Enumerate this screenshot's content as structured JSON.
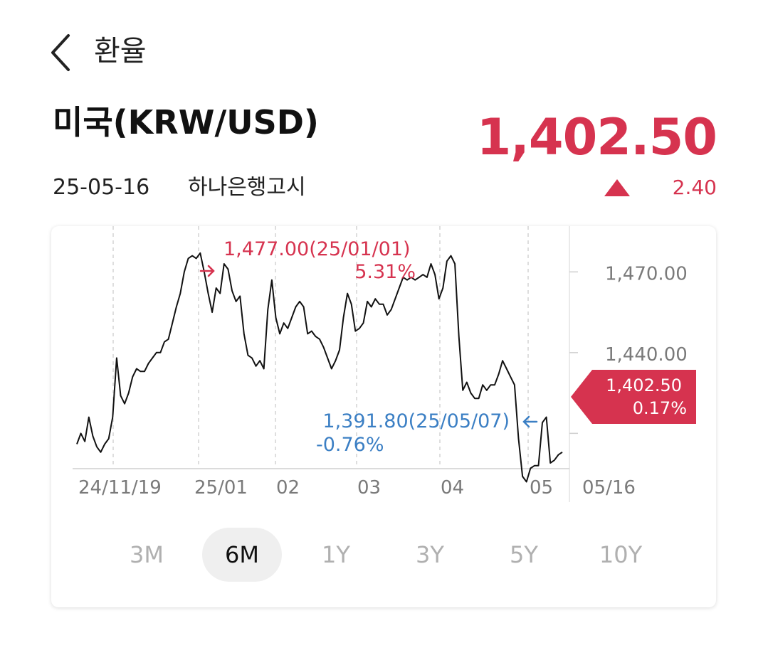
{
  "header": {
    "title": "환율",
    "back_icon": "chevron-left-icon"
  },
  "currency": {
    "name": "미국(KRW/USD)",
    "price": "1,402.50",
    "date": "25-05-16",
    "source": "하나은행고시",
    "change": "2.40",
    "change_direction": "up",
    "up_color": "#d6334f",
    "down_color": "#3b7fc4"
  },
  "periods": {
    "items": [
      "3M",
      "6M",
      "1Y",
      "3Y",
      "5Y",
      "10Y"
    ],
    "active": "6M"
  },
  "chart_data": {
    "type": "line",
    "series": [
      {
        "values": [
          1406,
          1410,
          1407,
          1416,
          1409,
          1405,
          1403,
          1406,
          1408,
          1416,
          1438,
          1424,
          1421,
          1425,
          1431,
          1434,
          1433,
          1433,
          1436,
          1438,
          1440,
          1440,
          1444,
          1445,
          1451,
          1457,
          1462,
          1470,
          1475,
          1476,
          1475,
          1477,
          1470,
          1462,
          1455,
          1464,
          1462,
          1473,
          1471,
          1463,
          1459,
          1461,
          1447,
          1439,
          1438,
          1435,
          1437,
          1434,
          1456,
          1467,
          1453,
          1447,
          1451,
          1449,
          1453,
          1457,
          1459,
          1457,
          1447,
          1448,
          1446,
          1445,
          1442,
          1438,
          1434,
          1437,
          1441,
          1453,
          1462,
          1458,
          1448,
          1449,
          1451,
          1459,
          1457,
          1460,
          1458,
          1458,
          1454,
          1456,
          1460,
          1464,
          1468,
          1467,
          1468,
          1467,
          1468,
          1469,
          1468,
          1473,
          1469,
          1460,
          1464,
          1474,
          1476,
          1473,
          1446,
          1426,
          1429,
          1425,
          1423,
          1423,
          1428,
          1426,
          1428,
          1428,
          1432,
          1437,
          1434,
          1431,
          1428,
          1408,
          1394,
          1392,
          1397,
          1398,
          1398,
          1414,
          1416,
          1399,
          1400,
          1402,
          1403
        ]
      }
    ],
    "x_labels": [
      "24/11/19",
      "25/01",
      "02",
      "03",
      "04",
      "05",
      "05/16"
    ],
    "y_ticks": [
      "1,470.00",
      "1,440.00"
    ],
    "y_tick_values": [
      1470,
      1440
    ],
    "y_range": [
      1376,
      1487
    ],
    "x_start": "2024-11-19",
    "x_end": "2025-05-16",
    "grid": "vertical-dashed",
    "max": {
      "value": "1,477.00",
      "date": "25/01/01",
      "label": "1,477.00(25/01/01)",
      "pct": "5.31%",
      "arrow": "right-arrow-icon"
    },
    "min": {
      "value": "1,391.80",
      "date": "25/05/07",
      "label": "1,391.80(25/05/07)",
      "pct": "-0.76%",
      "arrow": "left-arrow-icon"
    },
    "current": {
      "value": "1,402.50",
      "pct": "0.17%"
    }
  }
}
